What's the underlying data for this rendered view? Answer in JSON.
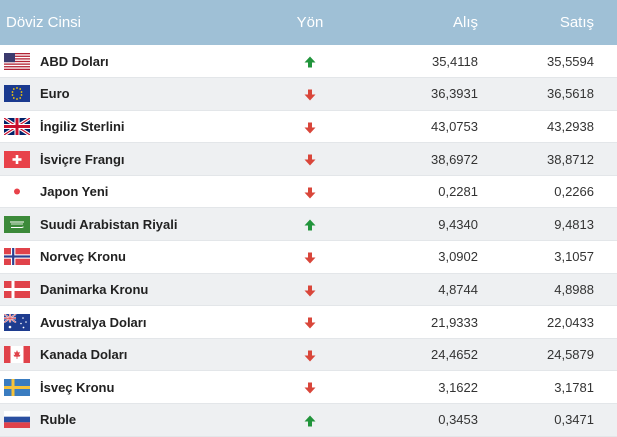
{
  "header": {
    "name": "Döviz Cinsi",
    "direction": "Yön",
    "buy": "Alış",
    "sell": "Satış"
  },
  "colors": {
    "header_bg": "#9fc0d6",
    "up": "#21943b",
    "down": "#d9463a",
    "alt_row": "#eef0f2"
  },
  "rows": [
    {
      "flag": "us-flag-icon",
      "name": "ABD Doları",
      "direction": "up",
      "buy": "35,4118",
      "sell": "35,5594"
    },
    {
      "flag": "eu-flag-icon",
      "name": "Euro",
      "direction": "down",
      "buy": "36,3931",
      "sell": "36,5618"
    },
    {
      "flag": "uk-flag-icon",
      "name": "İngiliz Sterlini",
      "direction": "down",
      "buy": "43,0753",
      "sell": "43,2938"
    },
    {
      "flag": "ch-flag-icon",
      "name": "İsviçre Frangı",
      "direction": "down",
      "buy": "38,6972",
      "sell": "38,8712"
    },
    {
      "flag": "jp-flag-icon",
      "name": "Japon Yeni",
      "direction": "down",
      "buy": "0,2281",
      "sell": "0,2266"
    },
    {
      "flag": "sa-flag-icon",
      "name": "Suudi Arabistan Riyali",
      "direction": "up",
      "buy": "9,4340",
      "sell": "9,4813"
    },
    {
      "flag": "no-flag-icon",
      "name": "Norveç Kronu",
      "direction": "down",
      "buy": "3,0902",
      "sell": "3,1057"
    },
    {
      "flag": "dk-flag-icon",
      "name": "Danimarka Kronu",
      "direction": "down",
      "buy": "4,8744",
      "sell": "4,8988"
    },
    {
      "flag": "au-flag-icon",
      "name": "Avustralya Doları",
      "direction": "down",
      "buy": "21,9333",
      "sell": "22,0433"
    },
    {
      "flag": "ca-flag-icon",
      "name": "Kanada Doları",
      "direction": "down",
      "buy": "24,4652",
      "sell": "24,5879"
    },
    {
      "flag": "se-flag-icon",
      "name": "İsveç Kronu",
      "direction": "down",
      "buy": "3,1622",
      "sell": "3,1781"
    },
    {
      "flag": "ru-flag-icon",
      "name": "Ruble",
      "direction": "up",
      "buy": "0,3453",
      "sell": "0,3471"
    }
  ]
}
